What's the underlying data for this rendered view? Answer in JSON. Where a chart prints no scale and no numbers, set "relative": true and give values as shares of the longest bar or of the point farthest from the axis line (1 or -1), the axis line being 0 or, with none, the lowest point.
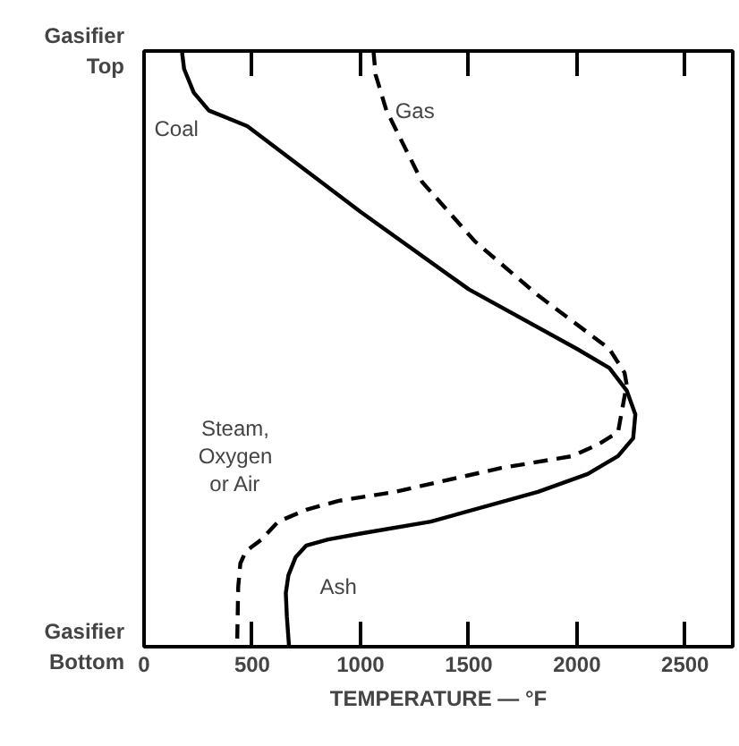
{
  "chart_data": {
    "type": "line",
    "xlabel": "TEMPERATURE — °F",
    "relative": true,
    "xlim": [
      0,
      2720
    ],
    "xticks": [
      0,
      500,
      1000,
      1500,
      2000,
      2500
    ],
    "grid": false,
    "series": [
      {
        "color": "#000000",
        "line_style": "solid",
        "x": [
          175,
          185,
          230,
          300,
          477,
          1000,
          1500,
          2000,
          2150,
          2230,
          2270,
          2260,
          2190,
          2050,
          1820,
          1325,
          1000,
          850,
          750,
          700,
          667,
          655,
          660,
          670
        ],
        "values": [
          1,
          0.97,
          0.93,
          0.9,
          0.874,
          0.73,
          0.6,
          0.5,
          0.468,
          0.43,
          0.39,
          0.35,
          0.32,
          0.29,
          0.26,
          0.21,
          0.19,
          0.18,
          0.17,
          0.15,
          0.12,
          0.09,
          0.05,
          0
        ]
      },
      {
        "color": "#000000",
        "line_style": "dashed",
        "x": [
          1060,
          1070,
          1120,
          1285,
          1530,
          1820,
          2150,
          2220,
          2230,
          2210,
          2190,
          2100,
          1980,
          1650,
          1160,
          900,
          750,
          620,
          543,
          470,
          445,
          435,
          430
        ],
        "values": [
          1,
          0.96,
          0.9,
          0.78,
          0.68,
          0.59,
          0.5,
          0.46,
          0.44,
          0.4,
          0.36,
          0.34,
          0.32,
          0.3,
          0.26,
          0.245,
          0.23,
          0.21,
          0.18,
          0.16,
          0.14,
          0.1,
          0
        ]
      }
    ],
    "annotations": [
      "Gasifier\nTop",
      "Gasifier\nBottom",
      "Coal",
      "Gas",
      "Steam,\nOxygen\nor Air",
      "Ash"
    ]
  }
}
